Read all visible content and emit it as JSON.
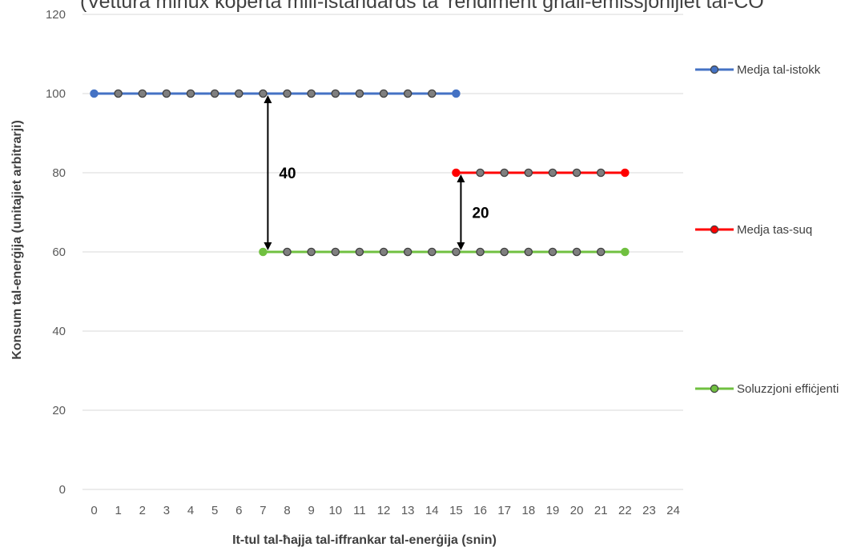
{
  "chart_data": {
    "type": "line",
    "title": "(Vettura minux koperta mill-istandards ta' rendiment għall-emissjonijiet tal-CO",
    "xlabel": "It-tul tal-ħajja tal-iffrankar tal-enerġija (snin)",
    "ylabel": "Konsum tal-enerġija (unitajiet arbitrarji)",
    "xlim": [
      0,
      24
    ],
    "ylim": [
      0,
      120
    ],
    "x_ticks": [
      "0",
      "1",
      "2",
      "3",
      "4",
      "5",
      "6",
      "7",
      "8",
      "9",
      "10",
      "11",
      "12",
      "13",
      "14",
      "15",
      "16",
      "17",
      "18",
      "19",
      "20",
      "21",
      "22",
      "23",
      "24"
    ],
    "y_ticks": [
      "0",
      "20",
      "40",
      "60",
      "80",
      "100",
      "120"
    ],
    "grid": true,
    "legend_position": "right",
    "series": [
      {
        "name": "Medja tal-istokk",
        "color": "#4472C4",
        "x": [
          0,
          1,
          2,
          3,
          4,
          5,
          6,
          7,
          8,
          9,
          10,
          11,
          12,
          13,
          14,
          15
        ],
        "y": [
          100,
          100,
          100,
          100,
          100,
          100,
          100,
          100,
          100,
          100,
          100,
          100,
          100,
          100,
          100,
          100
        ]
      },
      {
        "name": "Medja tas-suq",
        "color": "#FF0000",
        "x": [
          15,
          16,
          17,
          18,
          19,
          20,
          21,
          22
        ],
        "y": [
          80,
          80,
          80,
          80,
          80,
          80,
          80,
          80
        ]
      },
      {
        "name": "Soluzzjoni effiċjenti",
        "color": "#70C040",
        "x": [
          7,
          8,
          9,
          10,
          11,
          12,
          13,
          14,
          15,
          16,
          17,
          18,
          19,
          20,
          21,
          22
        ],
        "y": [
          60,
          60,
          60,
          60,
          60,
          60,
          60,
          60,
          60,
          60,
          60,
          60,
          60,
          60,
          60,
          60
        ]
      }
    ],
    "annotations": [
      {
        "label": "40",
        "x": 7,
        "y_from": 100,
        "y_to": 60
      },
      {
        "label": "20",
        "x": 15,
        "y_from": 80,
        "y_to": 60
      }
    ]
  }
}
